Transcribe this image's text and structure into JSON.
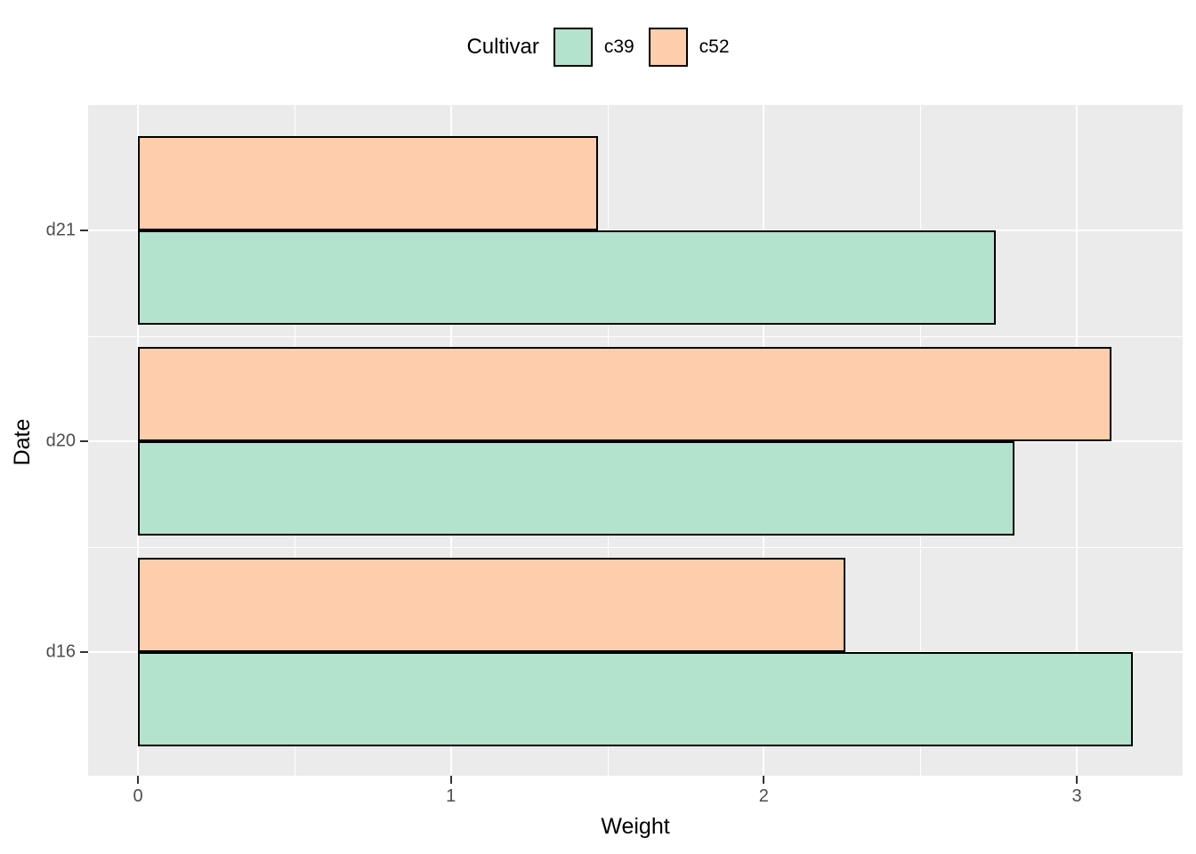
{
  "chart_data": {
    "type": "bar",
    "orientation": "horizontal",
    "legend_title": "Cultivar",
    "xlabel": "Weight",
    "ylabel": "Date",
    "categories": [
      "d21",
      "d20",
      "d16"
    ],
    "series": [
      {
        "name": "c39",
        "color": "#B3E2CD",
        "values": [
          2.74,
          2.8,
          3.18
        ]
      },
      {
        "name": "c52",
        "color": "#FDCDAC",
        "values": [
          1.47,
          3.11,
          2.26
        ]
      }
    ],
    "dodge_top_series": "c52",
    "x_ticks": [
      "0",
      "1",
      "2",
      "3"
    ],
    "x_tick_values": [
      0,
      1,
      2,
      3
    ],
    "x_minor_tick_values": [
      0.5,
      1.5,
      2.5
    ],
    "xlim": [
      -0.16,
      3.34
    ],
    "legend_position": "top",
    "grid": "on",
    "bar_border_color": "#000000",
    "panel_background": "#EBEBEB",
    "grid_color": "#FFFFFF",
    "tick_label_color": "#4D4D4D",
    "axis_title_color": "#000000"
  }
}
